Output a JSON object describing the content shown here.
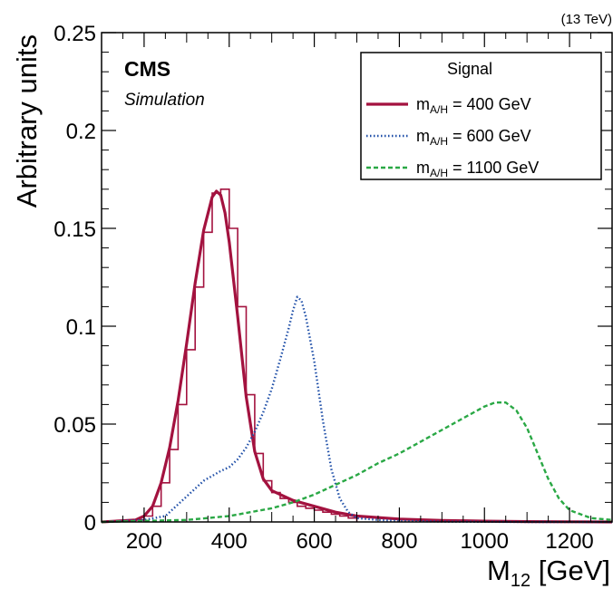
{
  "energy_label": "(13 TeV)",
  "cms_label": "CMS",
  "sim_label": "Simulation",
  "chart_data": {
    "type": "line",
    "xlabel_main": "M",
    "xlabel_sub": "12",
    "xlabel_unit": " [GeV]",
    "ylabel": "Arbitrary units",
    "xlim": [
      100,
      1300
    ],
    "ylim": [
      0,
      0.25
    ],
    "x_ticks": [
      200,
      400,
      600,
      800,
      1000,
      1200
    ],
    "y_ticks": [
      0,
      0.05,
      0.1,
      0.15,
      0.2,
      0.25
    ],
    "y_tick_labels": [
      "0",
      "0.05",
      "0.1",
      "0.15",
      "0.2",
      "0.25"
    ],
    "legend": {
      "title": "Signal",
      "position": "top-right"
    },
    "series": [
      {
        "name_main": "m",
        "name_sub": "A/H",
        "name_rest": " = 400 GeV",
        "color": "#a3123f",
        "style": "solid",
        "histogram": {
          "edges": [
            180,
            200,
            220,
            240,
            260,
            280,
            300,
            320,
            340,
            360,
            380,
            400,
            420,
            440,
            460,
            480,
            500,
            520,
            540,
            560,
            580,
            600,
            620,
            640,
            660,
            680,
            700
          ],
          "values": [
            0.001,
            0.003,
            0.008,
            0.02,
            0.037,
            0.06,
            0.088,
            0.12,
            0.148,
            0.168,
            0.17,
            0.15,
            0.11,
            0.065,
            0.035,
            0.021,
            0.015,
            0.012,
            0.01,
            0.008,
            0.007,
            0.006,
            0.005,
            0.004,
            0.003,
            0.002
          ]
        },
        "x": [
          100,
          180,
          200,
          220,
          240,
          260,
          280,
          300,
          320,
          340,
          360,
          370,
          380,
          390,
          400,
          420,
          440,
          460,
          480,
          500,
          550,
          600,
          650,
          700,
          800,
          900,
          1000,
          1100,
          1200,
          1300
        ],
        "y": [
          0,
          0.001,
          0.003,
          0.008,
          0.02,
          0.038,
          0.062,
          0.091,
          0.122,
          0.149,
          0.166,
          0.169,
          0.167,
          0.158,
          0.143,
          0.105,
          0.064,
          0.036,
          0.022,
          0.016,
          0.011,
          0.008,
          0.005,
          0.003,
          0.0015,
          0.0008,
          0.0004,
          0.0002,
          0.0001,
          0
        ]
      },
      {
        "name_main": "m",
        "name_sub": "A/H",
        "name_rest": " = 600 GeV",
        "color": "#1f4fa8",
        "style": "dotted",
        "x": [
          100,
          200,
          250,
          300,
          340,
          380,
          400,
          420,
          440,
          460,
          480,
          500,
          520,
          540,
          550,
          560,
          570,
          580,
          600,
          620,
          640,
          660,
          680,
          700,
          750,
          800,
          900,
          1000,
          1100,
          1300
        ],
        "y": [
          0,
          0.001,
          0.003,
          0.013,
          0.021,
          0.026,
          0.028,
          0.032,
          0.038,
          0.046,
          0.056,
          0.068,
          0.083,
          0.099,
          0.108,
          0.115,
          0.113,
          0.105,
          0.082,
          0.052,
          0.027,
          0.012,
          0.005,
          0.002,
          0.001,
          0.0005,
          0.0002,
          0.0001,
          0,
          0
        ]
      },
      {
        "name_main": "m",
        "name_sub": "A/H",
        "name_rest": " = 1100 GeV",
        "color": "#2aa845",
        "style": "dashed",
        "x": [
          100,
          200,
          300,
          400,
          450,
          500,
          550,
          600,
          650,
          700,
          750,
          800,
          850,
          900,
          950,
          1000,
          1025,
          1050,
          1075,
          1100,
          1125,
          1150,
          1175,
          1200,
          1250,
          1300
        ],
        "y": [
          0,
          0.0005,
          0.001,
          0.003,
          0.005,
          0.007,
          0.01,
          0.014,
          0.019,
          0.024,
          0.03,
          0.035,
          0.041,
          0.047,
          0.053,
          0.059,
          0.061,
          0.061,
          0.057,
          0.048,
          0.035,
          0.022,
          0.012,
          0.006,
          0.002,
          0.001
        ]
      }
    ]
  }
}
